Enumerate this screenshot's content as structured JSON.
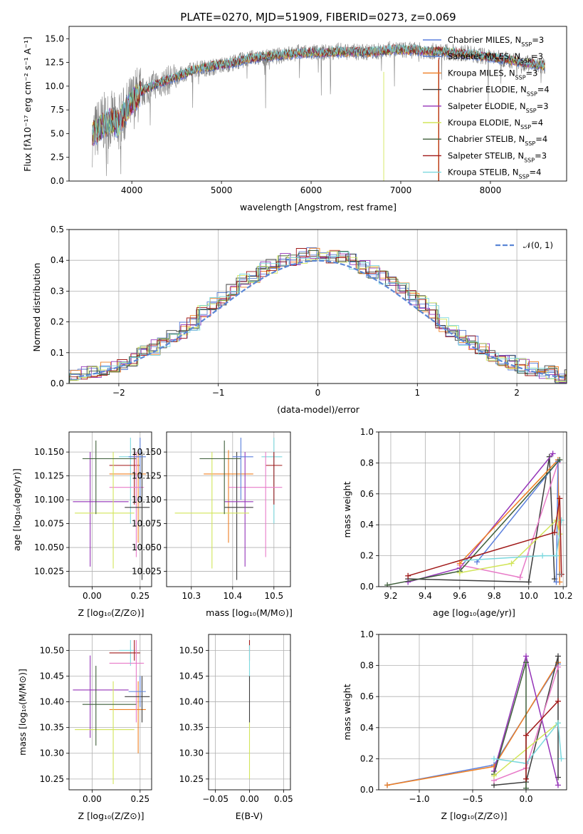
{
  "chart_data": [
    {
      "type": "line",
      "title": "PLATE=0270, MJD=51909, FIBERID=0273, z=0.069",
      "xlabel": "wavelength [Angstrom, rest frame]",
      "ylabel": "Flux [fλ10⁻¹⁷ erg cm⁻² s⁻¹ A⁻¹]",
      "xlim": [
        3300,
        8850
      ],
      "ylim": [
        0,
        16.3
      ],
      "xticks": [
        "4000",
        "5000",
        "6000",
        "7000",
        "8000"
      ],
      "yticks": [
        "0.0",
        "2.5",
        "5.0",
        "7.5",
        "10.0",
        "12.5",
        "15.0"
      ],
      "grid": false,
      "legend_position": "top-right",
      "data_series": {
        "name": "data",
        "color": "#808080",
        "x": [
          3550,
          3650,
          3750,
          3850,
          3950,
          4050,
          4150,
          4250,
          4350,
          4500,
          4700,
          4900,
          5100,
          5300,
          5500,
          5700,
          5900,
          6100,
          6300,
          6500,
          6700,
          6900,
          7100,
          7300,
          7500,
          7700,
          7900,
          8100,
          8300,
          8500,
          8600
        ],
        "y": [
          4.5,
          6.0,
          6.5,
          6.0,
          7.5,
          9.0,
          9.5,
          10.2,
          10.4,
          11.0,
          11.8,
          12.0,
          12.4,
          12.9,
          13.0,
          13.3,
          13.6,
          13.5,
          13.7,
          13.6,
          13.6,
          13.9,
          13.8,
          13.7,
          13.6,
          13.5,
          13.2,
          12.9,
          12.6,
          12.3,
          12.1
        ]
      },
      "series": [
        {
          "name": "Chabrier MILES, N_SSP=3",
          "color": "#5a7fdd"
        },
        {
          "name": "Salpeter MILES, N_SSP=3",
          "color": "#5b7fcf"
        },
        {
          "name": "Kroupa MILES, N_SSP=3",
          "color": "#ef7f22"
        },
        {
          "name": "Chabrier ELODIE, N_SSP=4",
          "color": "#3c3c3c"
        },
        {
          "name": "Salpeter ELODIE, N_SSP=3",
          "color": "#9433b8"
        },
        {
          "name": "Kroupa ELODIE, N_SSP=4",
          "color": "#d2e55a"
        },
        {
          "name": "Chabrier STELIB, N_SSP=4",
          "color": "#3e5e3a"
        },
        {
          "name": "Salpeter STELIB, N_SSP=3",
          "color": "#a01818"
        },
        {
          "name": "Kroupa STELIB, N_SSP=4",
          "color": "#7bd8de"
        }
      ],
      "model_x": [
        3550,
        3650,
        3750,
        3850,
        3950,
        4050,
        4150,
        4250,
        4350,
        4500,
        4700,
        4900,
        5100,
        5300,
        5500,
        5700,
        5900,
        6100,
        6300,
        6500,
        6700,
        6900,
        7100,
        7300,
        7500,
        7700,
        7900,
        8100,
        8300,
        8500,
        8600
      ],
      "model_y": [
        4.8,
        5.6,
        6.3,
        6.0,
        7.6,
        8.9,
        9.7,
        10.1,
        10.5,
        11.0,
        11.7,
        12.1,
        12.4,
        12.9,
        13.1,
        13.3,
        13.5,
        13.5,
        13.6,
        13.6,
        13.6,
        13.8,
        13.8,
        13.7,
        13.6,
        13.4,
        13.2,
        12.9,
        12.6,
        12.3,
        12.1
      ]
    },
    {
      "type": "line",
      "xlabel": "(data-model)/error",
      "ylabel": "Normed distribution",
      "xlim": [
        -2.5,
        2.5
      ],
      "ylim": [
        0,
        0.5
      ],
      "xticks": [
        "−2",
        "−1",
        "0",
        "1",
        "2"
      ],
      "yticks": [
        "0.0",
        "0.1",
        "0.2",
        "0.3",
        "0.4",
        "0.5"
      ],
      "grid": true,
      "legend_position": "top-right",
      "legend": "𝒩(0, 1)",
      "bin_width": 0.1,
      "histogram_series": [
        {
          "name": "Chabrier MILES",
          "color": "#5a7fdd",
          "offset": 0.011
        },
        {
          "name": "Salpeter MILES",
          "color": "#5b7fcf",
          "offset": -0.012
        },
        {
          "name": "Kroupa MILES",
          "color": "#ef7f22",
          "offset": 0.018
        },
        {
          "name": "Chabrier ELODIE",
          "color": "#3c3c3c",
          "offset": -0.02
        },
        {
          "name": "Salpeter ELODIE",
          "color": "#9433b8",
          "offset": 0.024
        },
        {
          "name": "Kroupa ELODIE",
          "color": "#d2e55a",
          "offset": -0.006
        },
        {
          "name": "Chabrier STELIB",
          "color": "#3e5e3a",
          "offset": 0.005
        },
        {
          "name": "Salpeter STELIB",
          "color": "#a01818",
          "offset": -0.016
        },
        {
          "name": "Kroupa STELIB",
          "color": "#7bd8de",
          "offset": 0.015
        }
      ],
      "gaussian": {
        "mu": 0,
        "sigma": 1,
        "color": "#5b87d6"
      }
    },
    {
      "type": "scatter",
      "xlabel": "Z [log₁₀(Z/Z⊙)]",
      "ylabel": "age  [log₁₀(age/yr)]",
      "xlim": [
        -0.12,
        0.31
      ],
      "ylim": [
        10.009,
        10.171
      ],
      "xticks": [
        "0.00",
        "0.25"
      ],
      "yticks": [
        "10.025",
        "10.050",
        "10.075",
        "10.100",
        "10.125",
        "10.150"
      ],
      "grid": true,
      "points": [
        {
          "color": "#7bd8de",
          "x": 0.2,
          "xlo": 0.14,
          "xhi": 0.22,
          "y": 10.145,
          "ylo": 10.075,
          "yhi": 10.165
        },
        {
          "color": "#a01818",
          "x": 0.22,
          "xlo": 0.09,
          "xhi": 0.25,
          "y": 10.136,
          "ylo": 10.095,
          "yhi": 10.15
        },
        {
          "color": "#ef7f22",
          "x": 0.24,
          "xlo": 0.09,
          "xhi": 0.28,
          "y": 10.127,
          "ylo": 10.055,
          "yhi": 10.152
        },
        {
          "color": "#e87bc8",
          "x": 0.23,
          "xlo": 0.09,
          "xhi": 0.27,
          "y": 10.113,
          "ylo": 10.04,
          "yhi": 10.15
        },
        {
          "color": "#3c3c3c",
          "x": 0.26,
          "xlo": 0.17,
          "xhi": 0.3,
          "y": 10.092,
          "ylo": 10.016,
          "yhi": 10.15
        },
        {
          "color": "#9433b8",
          "x": -0.01,
          "xlo": -0.1,
          "xhi": 0.19,
          "y": 10.098,
          "ylo": 10.03,
          "yhi": 10.15
        },
        {
          "color": "#d2e55a",
          "x": 0.11,
          "xlo": -0.09,
          "xhi": 0.22,
          "y": 10.086,
          "ylo": 10.028,
          "yhi": 10.15
        },
        {
          "color": "#3e5e3a",
          "x": 0.02,
          "xlo": -0.05,
          "xhi": 0.23,
          "y": 10.143,
          "ylo": 10.085,
          "yhi": 10.162
        },
        {
          "color": "#5a7fdd",
          "x": 0.25,
          "xlo": 0.19,
          "xhi": 0.28,
          "y": 10.145,
          "ylo": 10.1,
          "yhi": 10.165
        }
      ]
    },
    {
      "type": "scatter",
      "xlabel": "mass [log₁₀(M/M⊙)]",
      "ylabel": "",
      "xlim": [
        10.24,
        10.54
      ],
      "ylim": [
        10.009,
        10.171
      ],
      "xticks": [
        "10.3",
        "10.4",
        "10.5"
      ],
      "yticks": [
        "10.025",
        "10.050",
        "10.075",
        "10.100",
        "10.125",
        "10.150"
      ],
      "grid": true,
      "points": [
        {
          "color": "#7bd8de",
          "x": 10.5,
          "xlo": 10.47,
          "xhi": 10.52,
          "y": 10.145,
          "ylo": 10.075,
          "yhi": 10.165
        },
        {
          "color": "#a01818",
          "x": 10.5,
          "xlo": 10.48,
          "xhi": 10.52,
          "y": 10.136,
          "ylo": 10.095,
          "yhi": 10.15
        },
        {
          "color": "#ef7f22",
          "x": 10.39,
          "xlo": 10.33,
          "xhi": 10.45,
          "y": 10.127,
          "ylo": 10.055,
          "yhi": 10.152
        },
        {
          "color": "#e87bc8",
          "x": 10.48,
          "xlo": 10.39,
          "xhi": 10.52,
          "y": 10.113,
          "ylo": 10.04,
          "yhi": 10.15
        },
        {
          "color": "#3c3c3c",
          "x": 10.41,
          "xlo": 10.38,
          "xhi": 10.45,
          "y": 10.092,
          "ylo": 10.016,
          "yhi": 10.15
        },
        {
          "color": "#9433b8",
          "x": 10.43,
          "xlo": 10.38,
          "xhi": 10.45,
          "y": 10.098,
          "ylo": 10.03,
          "yhi": 10.15
        },
        {
          "color": "#d2e55a",
          "x": 10.35,
          "xlo": 10.26,
          "xhi": 10.44,
          "y": 10.086,
          "ylo": 10.028,
          "yhi": 10.15
        },
        {
          "color": "#3e5e3a",
          "x": 10.38,
          "xlo": 10.32,
          "xhi": 10.42,
          "y": 10.143,
          "ylo": 10.085,
          "yhi": 10.162
        },
        {
          "color": "#5a7fdd",
          "x": 10.42,
          "xlo": 10.4,
          "xhi": 10.45,
          "y": 10.145,
          "ylo": 10.1,
          "yhi": 10.165
        }
      ]
    },
    {
      "type": "line",
      "xlabel": "age  [log₁₀(age/yr)]",
      "ylabel": "mass weight",
      "xlim": [
        9.13,
        10.22
      ],
      "ylim": [
        0,
        1.0
      ],
      "xticks": [
        "9.2",
        "9.4",
        "9.6",
        "9.8",
        "10.0",
        "10.2"
      ],
      "yticks": [
        "0.0",
        "0.2",
        "0.4",
        "0.6",
        "0.8",
        "1.0"
      ],
      "grid": true,
      "lines": [
        {
          "color": "#3c3c3c",
          "x": [
            9.3,
            10.0,
            10.12,
            10.15
          ],
          "y": [
            0.05,
            0.03,
            0.84,
            0.05
          ]
        },
        {
          "color": "#9433b8",
          "x": [
            9.3,
            9.6,
            10.14
          ],
          "y": [
            0.03,
            0.12,
            0.86
          ]
        },
        {
          "color": "#e87bc8",
          "x": [
            9.6,
            9.95,
            10.17
          ],
          "y": [
            0.14,
            0.06,
            0.8
          ]
        },
        {
          "color": "#ef7f22",
          "x": [
            9.6,
            10.17,
            10.18
          ],
          "y": [
            0.15,
            0.82,
            0.03
          ]
        },
        {
          "color": "#5a7fdd",
          "x": [
            9.7,
            10.17,
            10.16
          ],
          "y": [
            0.16,
            0.81,
            0.03
          ]
        },
        {
          "color": "#3e5e3a",
          "x": [
            9.18,
            9.6,
            10.18
          ],
          "y": [
            0.01,
            0.1,
            0.82
          ]
        },
        {
          "color": "#d2e55a",
          "x": [
            9.6,
            9.9,
            10.16,
            10.18
          ],
          "y": [
            0.09,
            0.15,
            0.43,
            0.34
          ]
        },
        {
          "color": "#7bd8de",
          "x": [
            9.63,
            10.08,
            10.16,
            10.19
          ],
          "y": [
            0.17,
            0.2,
            0.2,
            0.43
          ]
        },
        {
          "color": "#a01818",
          "x": [
            9.3,
            10.15,
            10.18,
            10.19
          ],
          "y": [
            0.07,
            0.35,
            0.57,
            0.08
          ]
        },
        {
          "color": "#808080",
          "x": [
            10.18
          ],
          "y": [
            0.08
          ]
        }
      ]
    },
    {
      "type": "scatter",
      "xlabel": "Z [log₁₀(Z/Z⊙)]",
      "ylabel": "mass [log₁₀(M/M⊙)]",
      "xlim": [
        -0.12,
        0.31
      ],
      "ylim": [
        10.229,
        10.531
      ],
      "xticks": [
        "0.00",
        "0.25"
      ],
      "yticks": [
        "10.25",
        "10.30",
        "10.35",
        "10.40",
        "10.45",
        "10.50"
      ],
      "grid": true,
      "points": [
        {
          "color": "#7bd8de",
          "x": 0.2,
          "xlo": 0.14,
          "xhi": 0.22,
          "y": 10.5,
          "ylo": 10.47,
          "yhi": 10.52
        },
        {
          "color": "#a01818",
          "x": 0.22,
          "xlo": 0.09,
          "xhi": 0.25,
          "y": 10.495,
          "ylo": 10.48,
          "yhi": 10.52
        },
        {
          "color": "#ef7f22",
          "x": 0.24,
          "xlo": 0.09,
          "xhi": 0.28,
          "y": 10.385,
          "ylo": 10.3,
          "yhi": 10.44
        },
        {
          "color": "#e87bc8",
          "x": 0.23,
          "xlo": 0.09,
          "xhi": 0.27,
          "y": 10.475,
          "ylo": 10.36,
          "yhi": 10.52
        },
        {
          "color": "#3c3c3c",
          "x": 0.26,
          "xlo": 0.17,
          "xhi": 0.3,
          "y": 10.41,
          "ylo": 10.36,
          "yhi": 10.45
        },
        {
          "color": "#9433b8",
          "x": -0.01,
          "xlo": -0.1,
          "xhi": 0.19,
          "y": 10.423,
          "ylo": 10.33,
          "yhi": 10.49
        },
        {
          "color": "#d2e55a",
          "x": 0.11,
          "xlo": -0.09,
          "xhi": 0.22,
          "y": 10.346,
          "ylo": 10.24,
          "yhi": 10.44
        },
        {
          "color": "#3e5e3a",
          "x": 0.02,
          "xlo": -0.05,
          "xhi": 0.23,
          "y": 10.395,
          "ylo": 10.315,
          "yhi": 10.47
        },
        {
          "color": "#5a7fdd",
          "x": 0.25,
          "xlo": 0.19,
          "xhi": 0.28,
          "y": 10.42,
          "ylo": 10.39,
          "yhi": 10.45
        }
      ]
    },
    {
      "type": "scatter",
      "xlabel": "E(B-V)",
      "ylabel": "",
      "xlim": [
        -0.06,
        0.06
      ],
      "ylim": [
        10.229,
        10.531
      ],
      "xticks": [
        "−0.05",
        "0.00",
        "0.05"
      ],
      "yticks": [
        "10.25",
        "10.30",
        "10.35",
        "10.40",
        "10.45",
        "10.50"
      ],
      "grid": true,
      "points": [
        {
          "color": "#a01818",
          "x": 0,
          "y": 10.5,
          "ylo": 10.48,
          "yhi": 10.52
        },
        {
          "color": "#7bd8de",
          "x": 0,
          "y": 10.47,
          "ylo": 10.44,
          "yhi": 10.51
        },
        {
          "color": "#3c3c3c",
          "x": 0,
          "y": 10.41,
          "ylo": 10.36,
          "yhi": 10.45
        },
        {
          "color": "#d2e55a",
          "x": 0,
          "y": 10.33,
          "ylo": 10.25,
          "yhi": 10.36
        }
      ]
    },
    {
      "type": "line",
      "xlabel": "Z [log₁₀(Z/Z⊙)]",
      "ylabel": "mass weight",
      "xlim": [
        -1.38,
        0.38
      ],
      "ylim": [
        0,
        1.0
      ],
      "xticks": [
        "−1.0",
        "−0.5",
        "0.0"
      ],
      "yticks": [
        "0.0",
        "0.2",
        "0.4",
        "0.6",
        "0.8",
        "1.0"
      ],
      "grid": true,
      "lines": [
        {
          "color": "#5a7fdd",
          "x": [
            -1.3,
            -0.3,
            0.3
          ],
          "y": [
            0.03,
            0.16,
            0.81
          ]
        },
        {
          "color": "#ef7f22",
          "x": [
            -1.3,
            -0.3,
            0.3
          ],
          "y": [
            0.03,
            0.15,
            0.82
          ]
        },
        {
          "color": "#3c3c3c",
          "x": [
            -0.3,
            0.0,
            0.3,
            0.3
          ],
          "y": [
            0.03,
            0.05,
            0.86,
            0.08
          ]
        },
        {
          "color": "#9433b8",
          "x": [
            -0.3,
            0.0,
            0.3
          ],
          "y": [
            0.12,
            0.86,
            0.03
          ]
        },
        {
          "color": "#e87bc8",
          "x": [
            -0.3,
            0.0,
            0.3
          ],
          "y": [
            0.06,
            0.14,
            0.79
          ]
        },
        {
          "color": "#3e5e3a",
          "x": [
            -0.3,
            0.0,
            0.0
          ],
          "y": [
            0.1,
            0.82,
            0.01
          ]
        },
        {
          "color": "#d2e55a",
          "x": [
            -0.3,
            0.3
          ],
          "y": [
            0.09,
            0.43
          ]
        },
        {
          "color": "#7bd8de",
          "x": [
            -0.3,
            0.0,
            0.3,
            0.33
          ],
          "y": [
            0.2,
            0.17,
            0.43,
            0.2
          ]
        },
        {
          "color": "#a01818",
          "x": [
            0.0,
            0.0,
            0.3
          ],
          "y": [
            0.07,
            0.35,
            0.57
          ]
        }
      ]
    }
  ]
}
